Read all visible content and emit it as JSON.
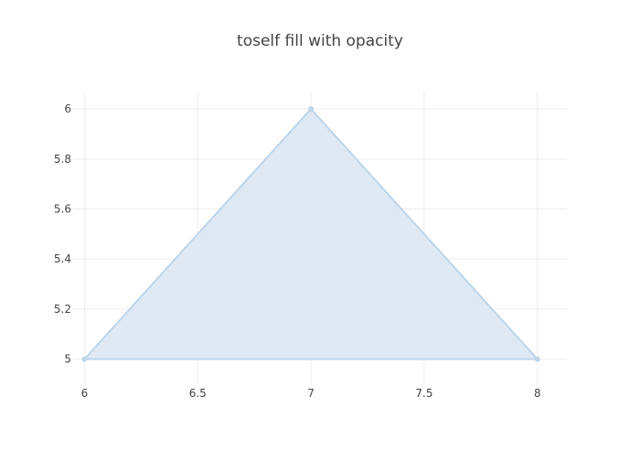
{
  "chart_data": {
    "type": "area",
    "title": "toself fill with opacity",
    "xlabel": "",
    "ylabel": "",
    "xlim": [
      5.95,
      8.13
    ],
    "ylim": [
      4.9,
      6.07
    ],
    "x_ticks": [
      6,
      6.5,
      7,
      7.5,
      8
    ],
    "x_tick_labels": [
      "6",
      "6.5",
      "7",
      "7.5",
      "8"
    ],
    "y_ticks": [
      5,
      5.2,
      5.4,
      5.6,
      5.8,
      6
    ],
    "y_tick_labels": [
      "5",
      "5.2",
      "5.4",
      "5.6",
      "5.8",
      "6"
    ],
    "grid": true,
    "series": [
      {
        "x": [
          6,
          7,
          8
        ],
        "y": [
          5,
          6,
          5
        ],
        "fill": "toself",
        "line_color": "#bcd5ea",
        "fill_color": "#dde8f3",
        "marker_color": "#bcd5ea"
      }
    ]
  }
}
